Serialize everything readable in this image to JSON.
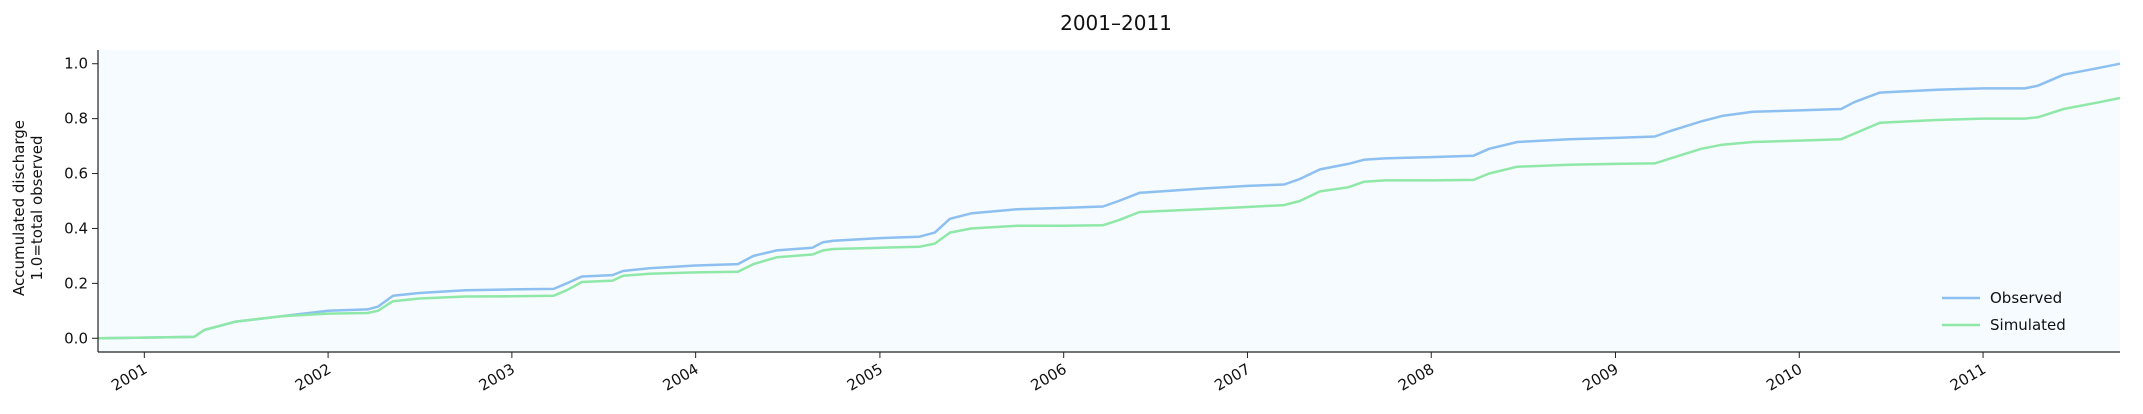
{
  "chart_data": {
    "type": "line",
    "title": "2001–2011",
    "ylabel_line1": "Accumulated discharge",
    "ylabel_line2": "1.0=total observed",
    "xlim": [
      "2000-10-01",
      "2011-09-30"
    ],
    "ylim": [
      -0.05,
      1.05
    ],
    "yticks": [
      0.0,
      0.2,
      0.4,
      0.6,
      0.8,
      1.0
    ],
    "ytick_labels": [
      "0.0",
      "0.2",
      "0.4",
      "0.6",
      "0.8",
      "1.0"
    ],
    "xticks": [
      "2001-01-01",
      "2002-01-01",
      "2003-01-01",
      "2004-01-01",
      "2005-01-01",
      "2006-01-01",
      "2007-01-01",
      "2008-01-01",
      "2009-01-01",
      "2010-01-01",
      "2011-01-01"
    ],
    "xtick_labels": [
      "2001",
      "2002",
      "2003",
      "2004",
      "2005",
      "2006",
      "2007",
      "2008",
      "2009",
      "2010",
      "2011"
    ],
    "legend_position": "bottom-right",
    "plot_background": "#f5fbfe",
    "series": [
      {
        "name": "Observed",
        "color": "#8dc0f0",
        "x": [
          "2000-10-01",
          "2001-04-10",
          "2001-04-30",
          "2001-06-30",
          "2001-09-30",
          "2002-01-01",
          "2002-03-20",
          "2002-04-10",
          "2002-05-10",
          "2002-07-01",
          "2002-10-01",
          "2003-01-01",
          "2003-03-25",
          "2003-04-20",
          "2003-05-20",
          "2003-07-20",
          "2003-08-10",
          "2003-10-01",
          "2004-01-01",
          "2004-03-25",
          "2004-04-25",
          "2004-06-10",
          "2004-08-20",
          "2004-09-10",
          "2004-10-01",
          "2005-01-01",
          "2005-03-20",
          "2005-04-20",
          "2005-05-20",
          "2005-07-01",
          "2005-10-01",
          "2006-01-01",
          "2006-03-20",
          "2006-04-20",
          "2006-06-01",
          "2006-10-01",
          "2007-01-01",
          "2007-03-15",
          "2007-04-15",
          "2007-05-25",
          "2007-07-20",
          "2007-08-20",
          "2007-10-01",
          "2008-01-01",
          "2008-03-25",
          "2008-04-25",
          "2008-06-20",
          "2008-10-01",
          "2009-01-01",
          "2009-03-20",
          "2009-04-20",
          "2009-06-20",
          "2009-08-01",
          "2009-10-01",
          "2010-01-01",
          "2010-03-25",
          "2010-04-20",
          "2010-06-10",
          "2010-10-01",
          "2011-01-01",
          "2011-03-25",
          "2011-04-20",
          "2011-06-10",
          "2011-08-20",
          "2011-09-30"
        ],
        "y": [
          0.0,
          0.005,
          0.03,
          0.06,
          0.08,
          0.1,
          0.105,
          0.115,
          0.155,
          0.165,
          0.175,
          0.178,
          0.18,
          0.2,
          0.225,
          0.23,
          0.245,
          0.255,
          0.265,
          0.27,
          0.3,
          0.32,
          0.33,
          0.35,
          0.355,
          0.365,
          0.37,
          0.385,
          0.435,
          0.455,
          0.47,
          0.475,
          0.48,
          0.5,
          0.53,
          0.545,
          0.555,
          0.56,
          0.58,
          0.615,
          0.635,
          0.65,
          0.655,
          0.66,
          0.665,
          0.69,
          0.715,
          0.725,
          0.73,
          0.735,
          0.755,
          0.79,
          0.81,
          0.825,
          0.83,
          0.835,
          0.86,
          0.895,
          0.905,
          0.91,
          0.91,
          0.92,
          0.96,
          0.985,
          1.0
        ]
      },
      {
        "name": "Simulated",
        "color": "#90e8a8",
        "x": [
          "2000-10-01",
          "2001-04-10",
          "2001-04-30",
          "2001-06-30",
          "2001-09-30",
          "2002-01-01",
          "2002-03-20",
          "2002-04-10",
          "2002-05-10",
          "2002-07-01",
          "2002-10-01",
          "2003-01-01",
          "2003-03-25",
          "2003-04-20",
          "2003-05-20",
          "2003-07-20",
          "2003-08-10",
          "2003-10-01",
          "2004-01-01",
          "2004-03-25",
          "2004-04-25",
          "2004-06-10",
          "2004-08-20",
          "2004-09-10",
          "2004-10-01",
          "2005-01-01",
          "2005-03-20",
          "2005-04-20",
          "2005-05-20",
          "2005-07-01",
          "2005-10-01",
          "2006-01-01",
          "2006-03-20",
          "2006-04-20",
          "2006-06-01",
          "2006-10-01",
          "2007-01-01",
          "2007-03-15",
          "2007-04-15",
          "2007-05-25",
          "2007-07-20",
          "2007-08-20",
          "2007-10-01",
          "2008-01-01",
          "2008-03-25",
          "2008-04-25",
          "2008-06-20",
          "2008-10-01",
          "2009-01-01",
          "2009-03-20",
          "2009-04-20",
          "2009-06-20",
          "2009-08-01",
          "2009-10-01",
          "2010-01-01",
          "2010-03-25",
          "2010-04-20",
          "2010-06-10",
          "2010-10-01",
          "2011-01-01",
          "2011-03-25",
          "2011-04-20",
          "2011-06-10",
          "2011-08-20",
          "2011-09-30"
        ],
        "y": [
          0.0,
          0.005,
          0.03,
          0.06,
          0.08,
          0.09,
          0.092,
          0.1,
          0.135,
          0.145,
          0.152,
          0.153,
          0.155,
          0.175,
          0.205,
          0.21,
          0.228,
          0.235,
          0.24,
          0.242,
          0.27,
          0.295,
          0.305,
          0.32,
          0.325,
          0.33,
          0.333,
          0.345,
          0.385,
          0.4,
          0.41,
          0.41,
          0.412,
          0.43,
          0.46,
          0.47,
          0.478,
          0.485,
          0.5,
          0.535,
          0.55,
          0.57,
          0.575,
          0.575,
          0.577,
          0.6,
          0.625,
          0.632,
          0.635,
          0.637,
          0.655,
          0.69,
          0.705,
          0.715,
          0.72,
          0.725,
          0.745,
          0.785,
          0.795,
          0.8,
          0.8,
          0.805,
          0.835,
          0.86,
          0.875
        ]
      }
    ]
  }
}
